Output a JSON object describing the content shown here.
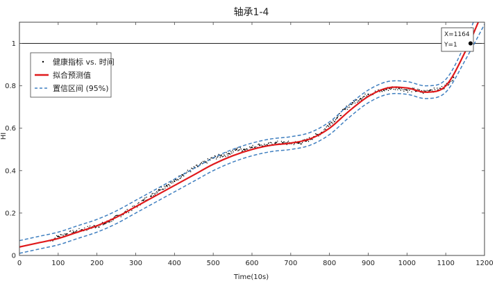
{
  "chart_data": {
    "type": "line",
    "title": "轴承1-4",
    "xlabel": "Time(10s)",
    "ylabel": "HI",
    "xlim": [
      0,
      1200
    ],
    "ylim": [
      0,
      1.1
    ],
    "xticks": [
      0,
      100,
      200,
      300,
      400,
      500,
      600,
      700,
      800,
      900,
      1000,
      1100,
      1200
    ],
    "yticks": [
      0,
      0.2,
      0.4,
      0.6,
      0.8,
      1
    ],
    "grid": false,
    "legend_position": "top-left",
    "threshold": {
      "y": 1,
      "color": "#000000"
    },
    "series": [
      {
        "name": "健康指标 vs. 时间",
        "style": "points",
        "color": "#000000",
        "x": [
          80,
          100,
          120,
          140,
          160,
          180,
          200,
          220,
          240,
          260,
          280,
          300,
          320,
          340,
          360,
          380,
          400,
          420,
          440,
          460,
          480,
          500,
          520,
          540,
          560,
          580,
          600,
          620,
          640,
          660,
          680,
          700,
          720,
          740,
          760,
          780,
          800,
          820,
          840,
          860,
          880,
          900,
          920,
          940,
          960,
          980,
          1000,
          1020,
          1040,
          1060,
          1080,
          1100,
          1120
        ],
        "y": [
          0.07,
          0.09,
          0.1,
          0.11,
          0.12,
          0.13,
          0.14,
          0.15,
          0.17,
          0.19,
          0.21,
          0.23,
          0.26,
          0.28,
          0.31,
          0.33,
          0.35,
          0.38,
          0.4,
          0.42,
          0.44,
          0.46,
          0.47,
          0.48,
          0.5,
          0.5,
          0.51,
          0.52,
          0.52,
          0.53,
          0.53,
          0.53,
          0.53,
          0.54,
          0.56,
          0.58,
          0.62,
          0.65,
          0.69,
          0.72,
          0.74,
          0.76,
          0.77,
          0.78,
          0.79,
          0.79,
          0.78,
          0.78,
          0.77,
          0.78,
          0.78,
          0.8,
          0.84
        ]
      },
      {
        "name": "拟合预测值",
        "style": "line",
        "color": "#e0191b",
        "x": [
          0,
          50,
          100,
          150,
          200,
          250,
          300,
          350,
          400,
          450,
          500,
          550,
          600,
          650,
          700,
          750,
          800,
          850,
          900,
          950,
          1000,
          1050,
          1100,
          1150,
          1200
        ],
        "y": [
          0.04,
          0.06,
          0.08,
          0.11,
          0.14,
          0.18,
          0.23,
          0.28,
          0.33,
          0.38,
          0.43,
          0.47,
          0.5,
          0.52,
          0.53,
          0.55,
          0.6,
          0.68,
          0.75,
          0.79,
          0.79,
          0.77,
          0.8,
          0.96,
          1.17
        ]
      },
      {
        "name": "置信区间 (95%)",
        "style": "dashed",
        "color": "#3f7fc0",
        "x": [
          0,
          50,
          100,
          150,
          200,
          250,
          300,
          350,
          400,
          450,
          500,
          550,
          600,
          650,
          700,
          750,
          800,
          850,
          900,
          950,
          1000,
          1050,
          1100,
          1150,
          1200
        ],
        "y": [
          0.07,
          0.09,
          0.11,
          0.14,
          0.17,
          0.21,
          0.26,
          0.31,
          0.36,
          0.41,
          0.46,
          0.5,
          0.53,
          0.55,
          0.56,
          0.58,
          0.63,
          0.71,
          0.78,
          0.82,
          0.82,
          0.8,
          0.83,
          1.0,
          1.25
        ],
        "lower": [
          0.01,
          0.03,
          0.05,
          0.08,
          0.11,
          0.15,
          0.2,
          0.25,
          0.3,
          0.35,
          0.4,
          0.44,
          0.47,
          0.49,
          0.5,
          0.52,
          0.57,
          0.65,
          0.72,
          0.76,
          0.76,
          0.74,
          0.77,
          0.92,
          1.09
        ]
      }
    ],
    "datatip": {
      "x_label": "X=1164",
      "y_label": "Y=1",
      "x": 1164,
      "y": 1
    }
  }
}
